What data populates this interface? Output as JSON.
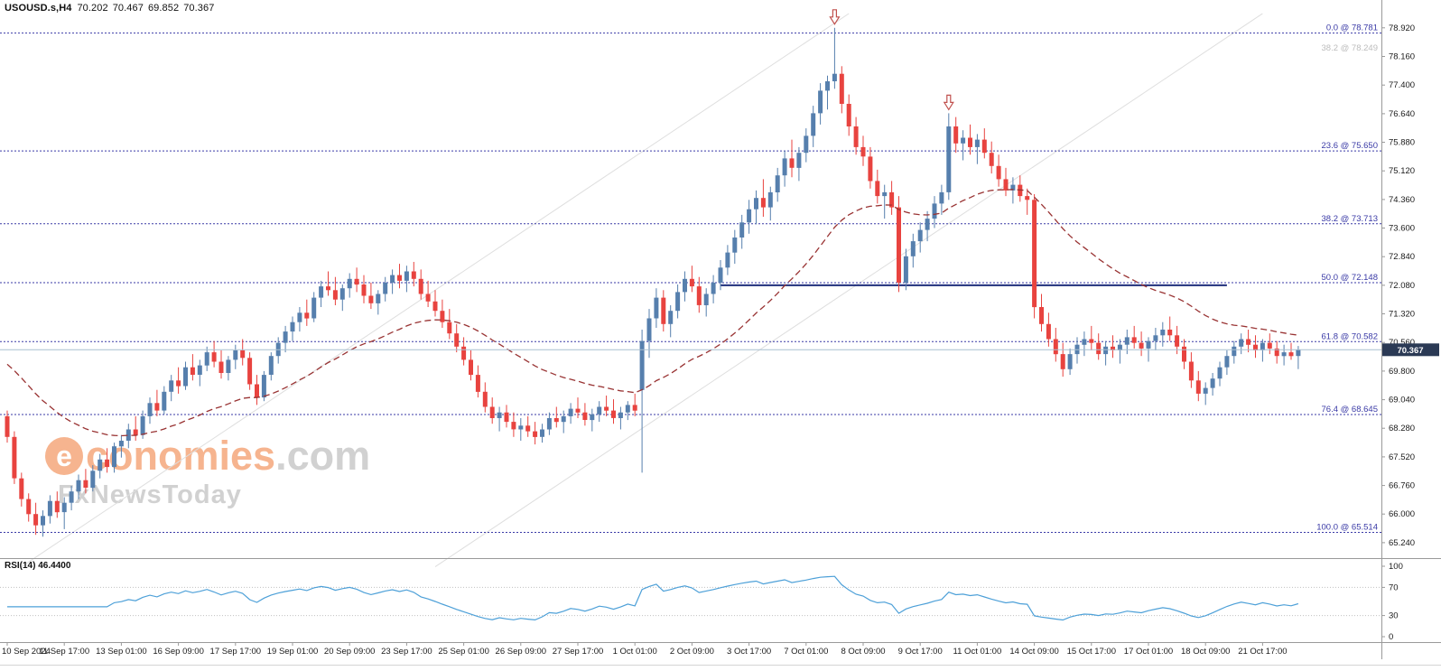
{
  "header": {
    "symbol": "USOUSD.s,H4",
    "open": "70.202",
    "high": "70.467",
    "low": "69.852",
    "close": "70.367"
  },
  "watermark": {
    "logo_letter": "e",
    "brand_main": "conomies",
    "brand_suffix": ".com",
    "brand_sub": "FxNewsToday"
  },
  "colors": {
    "background": "#ffffff",
    "candle_up": "#567fad",
    "candle_down": "#e8433f",
    "ma_line": "#993333",
    "fib": "#3a3aa6",
    "fib_secondary_label": "#bcbcbc",
    "resistance_line": "#1f2e7b",
    "current_price_line": "#a8bfd0",
    "price_badge_bg": "#2b3a55",
    "price_badge_text": "#ffffff",
    "rsi_line": "#4da0d8",
    "rsi_levels": "#c0c0c0",
    "axis_text": "#1a1a1a",
    "panel_border": "#9a9a9a",
    "trendline": "#dedede",
    "arrow": "#c0504d",
    "watermark_orange": "#f5a87c",
    "watermark_gray": "#c9c9c9"
  },
  "chart_data": {
    "type": "candlestick",
    "symbol": "USOUSD.s",
    "timeframe": "H4",
    "title": "USOUSD.s,H4",
    "ohlc_display": {
      "open": "70.202",
      "high": "70.467",
      "low": "69.852",
      "close": "70.367"
    },
    "current_price": 70.367,
    "current_price_label": "70.367",
    "price_top": 79.66,
    "price_bottom": 64.83,
    "y_axis_ticks": [
      "78.920",
      "78.160",
      "77.400",
      "76.640",
      "75.880",
      "75.120",
      "74.360",
      "73.600",
      "72.840",
      "72.080",
      "71.320",
      "70.560",
      "69.800",
      "69.040",
      "68.280",
      "67.520",
      "66.760",
      "66.000",
      "65.240"
    ],
    "x_labels": [
      "10 Sep 2024",
      "11 Sep 17:00",
      "13 Sep 01:00",
      "16 Sep 09:00",
      "17 Sep 17:00",
      "19 Sep 01:00",
      "20 Sep 09:00",
      "23 Sep 17:00",
      "25 Sep 01:00",
      "26 Sep 09:00",
      "27 Sep 17:00",
      "1 Oct 01:00",
      "2 Oct 09:00",
      "3 Oct 17:00",
      "7 Oct 01:00",
      "8 Oct 09:00",
      "9 Oct 17:00",
      "11 Oct 01:00",
      "14 Oct 09:00",
      "15 Oct 17:00",
      "17 Oct 01:00",
      "18 Oct 09:00",
      "21 Oct 17:00"
    ],
    "candles_per_label": 8,
    "fibonacci": [
      {
        "label": "0.0 @ 78.781",
        "price": 78.781
      },
      {
        "label": "23.6 @ 75.650",
        "price": 75.65
      },
      {
        "label": "38.2 @ 73.713",
        "price": 73.713
      },
      {
        "label": "50.0 @ 72.148",
        "price": 72.148
      },
      {
        "label": "61.8 @ 70.582",
        "price": 70.582
      },
      {
        "label": "76.4 @ 68.645",
        "price": 68.645
      },
      {
        "label": "100.0 @ 65.514",
        "price": 65.514
      }
    ],
    "fib_secondary": {
      "label": "38.2 @ 78.249",
      "price": 78.249
    },
    "resistance_line": {
      "price": 72.08,
      "from_index": 100,
      "to_index": 171
    },
    "trendlines": [
      {
        "i1": 2,
        "p1": 64.6,
        "i2": 118,
        "p2": 79.3
      },
      {
        "i1": 60,
        "p1": 64.6,
        "i2": 176,
        "p2": 79.3
      }
    ],
    "arrows": [
      {
        "index": 116,
        "price": 78.92
      },
      {
        "index": 132,
        "price": 76.65
      }
    ],
    "ma": {
      "period": 34,
      "seed": 70.1
    },
    "rsi_panel": {
      "label": "RSI(14) 46.4400",
      "period": 14,
      "last_value": 46.44,
      "axis_labels": [
        100,
        70,
        30,
        0
      ],
      "levels_dotted": [
        70,
        30
      ]
    },
    "candles": [
      [
        68.6,
        68.75,
        67.9,
        68.05
      ],
      [
        68.05,
        68.2,
        66.8,
        66.95
      ],
      [
        66.95,
        67.1,
        66.2,
        66.4
      ],
      [
        66.4,
        66.55,
        65.8,
        66.0
      ],
      [
        66.0,
        66.3,
        65.45,
        65.7
      ],
      [
        65.7,
        66.1,
        65.4,
        65.95
      ],
      [
        65.95,
        66.5,
        65.75,
        66.35
      ],
      [
        66.35,
        66.6,
        65.9,
        66.05
      ],
      [
        66.05,
        66.45,
        65.6,
        66.3
      ],
      [
        66.3,
        66.75,
        66.1,
        66.6
      ],
      [
        66.6,
        67.05,
        66.4,
        66.9
      ],
      [
        66.9,
        67.2,
        66.55,
        66.7
      ],
      [
        66.7,
        67.3,
        66.6,
        67.15
      ],
      [
        67.15,
        67.6,
        66.95,
        67.45
      ],
      [
        67.45,
        67.75,
        67.1,
        67.25
      ],
      [
        67.25,
        67.9,
        67.1,
        67.8
      ],
      [
        67.8,
        68.1,
        67.5,
        67.95
      ],
      [
        67.95,
        68.4,
        67.75,
        68.25
      ],
      [
        68.25,
        68.6,
        67.95,
        68.1
      ],
      [
        68.1,
        68.75,
        68.0,
        68.6
      ],
      [
        68.6,
        69.1,
        68.4,
        68.95
      ],
      [
        68.95,
        69.3,
        68.6,
        68.75
      ],
      [
        68.75,
        69.4,
        68.65,
        69.25
      ],
      [
        69.25,
        69.7,
        69.0,
        69.55
      ],
      [
        69.55,
        69.9,
        69.2,
        69.4
      ],
      [
        69.4,
        70.05,
        69.3,
        69.9
      ],
      [
        69.9,
        70.25,
        69.55,
        69.7
      ],
      [
        69.7,
        70.1,
        69.4,
        69.95
      ],
      [
        69.95,
        70.45,
        69.8,
        70.3
      ],
      [
        70.3,
        70.6,
        69.9,
        70.05
      ],
      [
        70.05,
        70.35,
        69.6,
        69.75
      ],
      [
        69.75,
        70.2,
        69.55,
        70.1
      ],
      [
        70.1,
        70.5,
        69.85,
        70.35
      ],
      [
        70.35,
        70.65,
        69.95,
        70.15
      ],
      [
        70.15,
        70.3,
        69.3,
        69.45
      ],
      [
        69.45,
        69.7,
        68.9,
        69.1
      ],
      [
        69.1,
        69.8,
        69.0,
        69.7
      ],
      [
        69.7,
        70.3,
        69.55,
        70.2
      ],
      [
        70.2,
        70.7,
        70.0,
        70.55
      ],
      [
        70.55,
        71.0,
        70.3,
        70.85
      ],
      [
        70.85,
        71.25,
        70.6,
        71.1
      ],
      [
        71.1,
        71.5,
        70.85,
        71.35
      ],
      [
        71.35,
        71.7,
        71.0,
        71.2
      ],
      [
        71.2,
        71.9,
        71.1,
        71.75
      ],
      [
        71.75,
        72.2,
        71.5,
        72.05
      ],
      [
        72.05,
        72.45,
        71.8,
        71.95
      ],
      [
        71.95,
        72.3,
        71.55,
        71.7
      ],
      [
        71.7,
        72.1,
        71.4,
        72.0
      ],
      [
        72.0,
        72.4,
        71.75,
        72.25
      ],
      [
        72.25,
        72.55,
        71.9,
        72.1
      ],
      [
        72.1,
        72.35,
        71.6,
        71.8
      ],
      [
        71.8,
        72.15,
        71.45,
        71.6
      ],
      [
        71.6,
        71.95,
        71.3,
        71.85
      ],
      [
        71.85,
        72.3,
        71.65,
        72.15
      ],
      [
        72.15,
        72.5,
        71.85,
        72.35
      ],
      [
        72.35,
        72.65,
        72.0,
        72.2
      ],
      [
        72.2,
        72.6,
        71.9,
        72.45
      ],
      [
        72.45,
        72.7,
        72.05,
        72.25
      ],
      [
        72.25,
        72.5,
        71.7,
        71.85
      ],
      [
        71.85,
        72.2,
        71.5,
        71.65
      ],
      [
        71.65,
        71.95,
        71.25,
        71.4
      ],
      [
        71.4,
        71.7,
        70.95,
        71.1
      ],
      [
        71.1,
        71.45,
        70.65,
        70.8
      ],
      [
        70.8,
        71.05,
        70.3,
        70.45
      ],
      [
        70.45,
        70.7,
        69.95,
        70.1
      ],
      [
        70.1,
        70.35,
        69.55,
        69.7
      ],
      [
        69.7,
        69.95,
        69.1,
        69.25
      ],
      [
        69.25,
        69.5,
        68.7,
        68.85
      ],
      [
        68.85,
        69.1,
        68.4,
        68.55
      ],
      [
        68.55,
        68.85,
        68.2,
        68.7
      ],
      [
        68.7,
        68.9,
        68.3,
        68.45
      ],
      [
        68.45,
        68.7,
        68.05,
        68.25
      ],
      [
        68.25,
        68.55,
        67.95,
        68.35
      ],
      [
        68.35,
        68.6,
        68.05,
        68.2
      ],
      [
        68.2,
        68.45,
        67.85,
        68.05
      ],
      [
        68.05,
        68.4,
        67.9,
        68.25
      ],
      [
        68.25,
        68.7,
        68.1,
        68.55
      ],
      [
        68.55,
        68.85,
        68.3,
        68.45
      ],
      [
        68.45,
        68.75,
        68.15,
        68.6
      ],
      [
        68.6,
        68.95,
        68.4,
        68.8
      ],
      [
        68.8,
        69.1,
        68.55,
        68.7
      ],
      [
        68.7,
        68.95,
        68.35,
        68.5
      ],
      [
        68.5,
        68.8,
        68.2,
        68.65
      ],
      [
        68.65,
        69.0,
        68.45,
        68.85
      ],
      [
        68.85,
        69.15,
        68.6,
        68.75
      ],
      [
        68.75,
        69.05,
        68.4,
        68.55
      ],
      [
        68.55,
        68.85,
        68.25,
        68.7
      ],
      [
        68.7,
        69.0,
        68.5,
        68.9
      ],
      [
        68.9,
        69.2,
        68.6,
        68.75
      ],
      [
        69.3,
        70.9,
        67.1,
        70.6
      ],
      [
        70.6,
        71.45,
        70.15,
        71.2
      ],
      [
        71.2,
        72.0,
        70.95,
        71.75
      ],
      [
        71.75,
        71.95,
        70.85,
        71.05
      ],
      [
        71.05,
        71.55,
        70.7,
        71.4
      ],
      [
        71.4,
        72.1,
        71.2,
        71.9
      ],
      [
        71.9,
        72.45,
        71.65,
        72.25
      ],
      [
        72.25,
        72.6,
        71.9,
        72.05
      ],
      [
        72.05,
        72.3,
        71.35,
        71.55
      ],
      [
        71.55,
        72.0,
        71.25,
        71.85
      ],
      [
        71.85,
        72.35,
        71.6,
        72.15
      ],
      [
        72.15,
        72.75,
        71.95,
        72.55
      ],
      [
        72.55,
        73.15,
        72.35,
        72.95
      ],
      [
        72.95,
        73.55,
        72.65,
        73.35
      ],
      [
        73.35,
        73.95,
        73.05,
        73.75
      ],
      [
        73.75,
        74.35,
        73.45,
        74.1
      ],
      [
        74.1,
        74.6,
        73.7,
        74.4
      ],
      [
        74.4,
        74.9,
        73.9,
        74.15
      ],
      [
        74.15,
        74.7,
        73.8,
        74.55
      ],
      [
        74.55,
        75.2,
        74.3,
        75.0
      ],
      [
        75.0,
        75.65,
        74.7,
        75.45
      ],
      [
        75.45,
        75.95,
        74.95,
        75.2
      ],
      [
        75.2,
        75.75,
        74.85,
        75.6
      ],
      [
        75.6,
        76.25,
        75.35,
        76.05
      ],
      [
        76.05,
        76.85,
        75.75,
        76.65
      ],
      [
        76.65,
        77.45,
        76.35,
        77.25
      ],
      [
        77.25,
        77.65,
        76.75,
        77.5
      ],
      [
        77.5,
        78.92,
        77.3,
        77.7
      ],
      [
        77.7,
        77.9,
        76.65,
        76.9
      ],
      [
        76.9,
        77.15,
        76.05,
        76.3
      ],
      [
        76.3,
        76.55,
        75.55,
        75.75
      ],
      [
        75.75,
        76.05,
        75.25,
        75.5
      ],
      [
        75.5,
        75.75,
        74.65,
        74.85
      ],
      [
        74.85,
        75.15,
        74.25,
        74.45
      ],
      [
        74.45,
        74.75,
        73.85,
        74.55
      ],
      [
        74.55,
        74.85,
        73.95,
        74.15
      ],
      [
        74.15,
        74.45,
        71.9,
        72.15
      ],
      [
        72.15,
        73.05,
        71.95,
        72.85
      ],
      [
        72.85,
        73.45,
        72.55,
        73.25
      ],
      [
        73.25,
        73.75,
        72.95,
        73.55
      ],
      [
        73.55,
        74.05,
        73.25,
        73.85
      ],
      [
        73.85,
        74.45,
        73.6,
        74.25
      ],
      [
        74.25,
        74.75,
        73.95,
        74.55
      ],
      [
        74.55,
        76.65,
        74.35,
        76.3
      ],
      [
        76.3,
        76.55,
        75.6,
        75.85
      ],
      [
        75.85,
        76.2,
        75.4,
        76.0
      ],
      [
        76.0,
        76.35,
        75.55,
        75.75
      ],
      [
        75.75,
        76.1,
        75.3,
        75.95
      ],
      [
        75.95,
        76.25,
        75.45,
        75.6
      ],
      [
        75.6,
        75.9,
        75.05,
        75.25
      ],
      [
        75.25,
        75.55,
        74.7,
        74.9
      ],
      [
        74.9,
        75.2,
        74.45,
        74.6
      ],
      [
        74.6,
        74.95,
        74.25,
        74.75
      ],
      [
        74.75,
        75.0,
        74.3,
        74.45
      ],
      [
        74.45,
        74.65,
        73.95,
        74.35
      ],
      [
        74.35,
        74.5,
        71.2,
        71.5
      ],
      [
        71.5,
        71.85,
        70.85,
        71.05
      ],
      [
        71.05,
        71.35,
        70.45,
        70.65
      ],
      [
        70.65,
        70.95,
        70.05,
        70.25
      ],
      [
        70.25,
        70.55,
        69.65,
        69.85
      ],
      [
        69.85,
        70.4,
        69.7,
        70.25
      ],
      [
        70.25,
        70.7,
        70.0,
        70.5
      ],
      [
        70.5,
        70.85,
        70.2,
        70.65
      ],
      [
        70.65,
        71.0,
        70.35,
        70.55
      ],
      [
        70.55,
        70.8,
        70.1,
        70.25
      ],
      [
        70.25,
        70.6,
        69.95,
        70.45
      ],
      [
        70.45,
        70.75,
        70.15,
        70.35
      ],
      [
        70.35,
        70.65,
        70.0,
        70.5
      ],
      [
        70.5,
        70.9,
        70.25,
        70.7
      ],
      [
        70.7,
        71.0,
        70.4,
        70.55
      ],
      [
        70.55,
        70.85,
        70.2,
        70.4
      ],
      [
        70.4,
        70.7,
        70.05,
        70.6
      ],
      [
        70.6,
        70.95,
        70.35,
        70.75
      ],
      [
        70.75,
        71.1,
        70.45,
        70.9
      ],
      [
        70.9,
        71.25,
        70.6,
        70.75
      ],
      [
        70.75,
        71.0,
        70.25,
        70.45
      ],
      [
        70.45,
        70.65,
        69.85,
        70.05
      ],
      [
        70.05,
        70.3,
        69.35,
        69.55
      ],
      [
        69.55,
        69.8,
        69.0,
        69.2
      ],
      [
        69.2,
        69.5,
        68.9,
        69.35
      ],
      [
        69.35,
        69.75,
        69.15,
        69.6
      ],
      [
        69.6,
        70.05,
        69.4,
        69.9
      ],
      [
        69.9,
        70.35,
        69.7,
        70.2
      ],
      [
        70.2,
        70.6,
        70.0,
        70.45
      ],
      [
        70.45,
        70.8,
        70.25,
        70.65
      ],
      [
        70.65,
        70.9,
        70.3,
        70.5
      ],
      [
        70.5,
        70.75,
        70.15,
        70.35
      ],
      [
        70.35,
        70.65,
        70.05,
        70.55
      ],
      [
        70.55,
        70.8,
        70.25,
        70.4
      ],
      [
        70.4,
        70.6,
        70.0,
        70.2
      ],
      [
        70.2,
        70.5,
        69.95,
        70.3
      ],
      [
        70.3,
        70.55,
        70.1,
        70.2
      ],
      [
        70.202,
        70.467,
        69.852,
        70.367
      ]
    ]
  }
}
